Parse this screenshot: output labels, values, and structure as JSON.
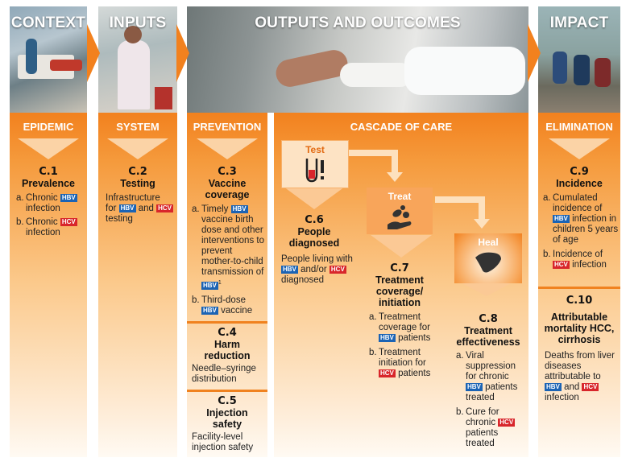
{
  "columns": {
    "context": {
      "header": "CONTEXT",
      "sub": "EPIDEMIC",
      "cid": "C.1",
      "title": "Prevalence",
      "a_mark": "a.",
      "a_pre": "Chronic",
      "a_tag": "HBV",
      "a_post": "infection",
      "b_mark": "b.",
      "b_pre": "Chronic",
      "b_tag": "HCV",
      "b_post": "infection"
    },
    "inputs": {
      "header": "INPUTS",
      "sub": "SYSTEM",
      "cid": "C.2",
      "title": "Testing",
      "t1": "Infrastructure",
      "t2": "for",
      "tag1": "HBV",
      "t3": "and",
      "tag2": "HCV",
      "t4": "testing"
    },
    "outputs": {
      "header": "OUTPUTS AND OUTCOMES"
    },
    "prevention": {
      "sub": "PREVENTION",
      "c3_id": "C.3",
      "c3_title": "Vaccine coverage",
      "a_mark": "a.",
      "a_pre": "Timely",
      "a_tag": "HBV",
      "a_mid": "vaccine birth dose and other interventions to prevent mother-to-child transmission of",
      "a_tag2": "HBV",
      "a_sup": "1",
      "b_mark": "b.",
      "b_pre": "Third-dose",
      "b_tag": "HBV",
      "b_post": "vaccine",
      "c4_id": "C.4",
      "c4_title": "Harm reduction",
      "c4_text": "Needle–syringe distribution",
      "c5_id": "C.5",
      "c5_title": "Injection safety",
      "c5_text": "Facility-level injection safety"
    },
    "cascade": {
      "sub": "CASCADE OF CARE",
      "test_label": "Test",
      "treat_label": "Treat",
      "heal_label": "Heal",
      "c6_id": "C.6",
      "c6_title": "People diagnosed",
      "c6_t1": "People living with",
      "c6_tag1": "HBV",
      "c6_t2": "and/or",
      "c6_tag2": "HCV",
      "c6_t3": "diagnosed",
      "c7_id": "C.7",
      "c7_title": "Treatment coverage/ initiation",
      "c7_a_mark": "a.",
      "c7_a_pre": "Treatment coverage for",
      "c7_a_tag": "HBV",
      "c7_a_post": "patients",
      "c7_b_mark": "b.",
      "c7_b_pre": "Treatment initiation for",
      "c7_b_tag": "HCV",
      "c7_b_post": "patients",
      "c8_id": "C.8",
      "c8_title": "Treatment effectiveness",
      "c8_a_mark": "a.",
      "c8_a_pre": "Viral suppression for chronic",
      "c8_a_tag": "HBV",
      "c8_a_post": "patients treated",
      "c8_b_mark": "b.",
      "c8_b_pre": "Cure for chronic",
      "c8_b_tag": "HCV",
      "c8_b_post": "patients treated"
    },
    "impact": {
      "header": "IMPACT",
      "sub": "ELIMINATION",
      "c9_id": "C.9",
      "c9_title": "Incidence",
      "a_mark": "a.",
      "a_pre": "Cumulated incidence of",
      "a_tag": "HBV",
      "a_post": "infection in children 5 years of age",
      "b_mark": "b.",
      "b_pre": "Incidence of",
      "b_tag": "HCV",
      "b_post": "infection",
      "c10_id": "C.10",
      "c10_title": "Attributable mortality HCC, cirrhosis",
      "c10_t1": "Deaths from liver diseases attributable to",
      "c10_tag1": "HBV",
      "c10_t2": "and",
      "c10_tag2": "HCV",
      "c10_t3": "infection"
    }
  },
  "colors": {
    "orange": "#f2811e",
    "hbv": "#1b63b4",
    "hcv": "#d8262b"
  }
}
